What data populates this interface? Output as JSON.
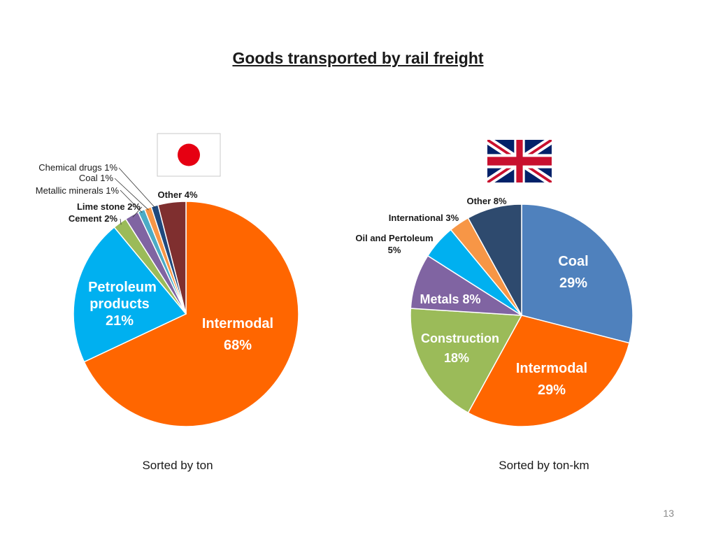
{
  "slide": {
    "title": "Goods transported by rail freight",
    "page_number": "13"
  },
  "flags": {
    "left": {
      "name": "japan-flag-icon",
      "colors": {
        "field": "#ffffff",
        "disc": "#e60012"
      }
    },
    "right": {
      "name": "uk-flag-icon",
      "colors": {
        "blue": "#012169",
        "red": "#c8102e",
        "white": "#ffffff"
      }
    }
  },
  "chart_data": [
    {
      "type": "pie",
      "caption": "Sorted by ton",
      "slices": [
        {
          "name": "Intermodal",
          "label": "Intermodal",
          "value_label": "68%",
          "value": 68,
          "color": "#ff6600"
        },
        {
          "name": "Petroleum products",
          "label": "Petroleum products",
          "value_label": "21%",
          "value": 21,
          "color": "#00b0f0"
        },
        {
          "name": "Cement",
          "label": "Cement 2%",
          "value": 2,
          "color": "#9bbb59"
        },
        {
          "name": "Lime stone",
          "label": "Lime stone 2%",
          "value": 2,
          "color": "#8064a2"
        },
        {
          "name": "Metallic minerals",
          "label": "Metallic minerals 1%",
          "value": 1,
          "color": "#4bacc6"
        },
        {
          "name": "Coal",
          "label": "Coal 1%",
          "value": 1,
          "color": "#f79646"
        },
        {
          "name": "Chemical drugs",
          "label": "Chemical drugs 1%",
          "value": 1,
          "color": "#1f497d"
        },
        {
          "name": "Other",
          "label": "Other 4%",
          "value": 4,
          "color": "#7f2f2f"
        }
      ]
    },
    {
      "type": "pie",
      "caption": "Sorted by ton-km",
      "slices": [
        {
          "name": "Coal",
          "label": "Coal",
          "value_label": "29%",
          "value": 29,
          "color": "#4f81bd"
        },
        {
          "name": "Intermodal",
          "label": "Intermodal",
          "value_label": "29%",
          "value": 29,
          "color": "#ff6600"
        },
        {
          "name": "Construction",
          "label": "Construction",
          "value_label": "18%",
          "value": 18,
          "color": "#9bbb59"
        },
        {
          "name": "Metals",
          "label": "Metals 8%",
          "value": 8,
          "color": "#8064a2"
        },
        {
          "name": "Oil and Pertoleum",
          "label": "Oil and Pertoleum",
          "value_label": "5%",
          "value": 5,
          "color": "#00b0f0"
        },
        {
          "name": "International",
          "label": "International 3%",
          "value": 3,
          "color": "#f79646"
        },
        {
          "name": "Other",
          "label": "Other 8%",
          "value": 8,
          "color": "#2e4a6e"
        }
      ]
    }
  ]
}
